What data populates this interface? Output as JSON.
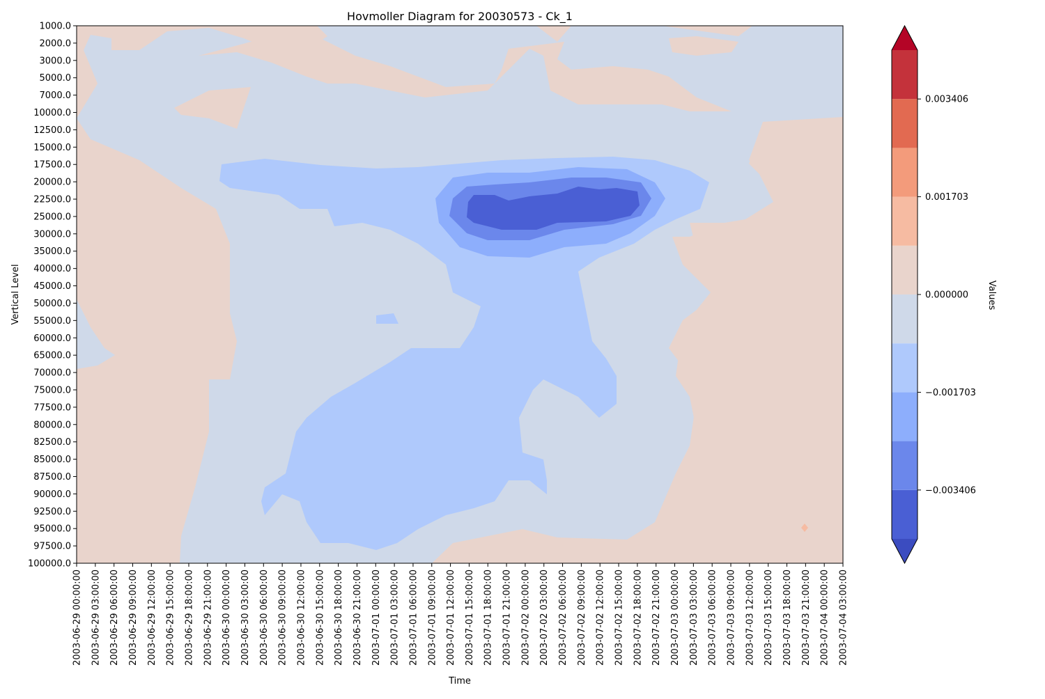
{
  "chart_data": {
    "type": "heatmap",
    "title": "Hovmoller Diagram for 20030573 - Ck_1",
    "xlabel": "Time",
    "ylabel": "Vertical Level",
    "x_ticks": [
      "2003-06-29 00:00:00",
      "2003-06-29 03:00:00",
      "2003-06-29 06:00:00",
      "2003-06-29 09:00:00",
      "2003-06-29 12:00:00",
      "2003-06-29 15:00:00",
      "2003-06-29 18:00:00",
      "2003-06-29 21:00:00",
      "2003-06-30 00:00:00",
      "2003-06-30 03:00:00",
      "2003-06-30 06:00:00",
      "2003-06-30 09:00:00",
      "2003-06-30 12:00:00",
      "2003-06-30 15:00:00",
      "2003-06-30 18:00:00",
      "2003-06-30 21:00:00",
      "2003-07-01 00:00:00",
      "2003-07-01 03:00:00",
      "2003-07-01 06:00:00",
      "2003-07-01 09:00:00",
      "2003-07-01 12:00:00",
      "2003-07-01 15:00:00",
      "2003-07-01 18:00:00",
      "2003-07-01 21:00:00",
      "2003-07-02 00:00:00",
      "2003-07-02 03:00:00",
      "2003-07-02 06:00:00",
      "2003-07-02 09:00:00",
      "2003-07-02 12:00:00",
      "2003-07-02 15:00:00",
      "2003-07-02 18:00:00",
      "2003-07-02 21:00:00",
      "2003-07-03 00:00:00",
      "2003-07-03 03:00:00",
      "2003-07-03 06:00:00",
      "2003-07-03 09:00:00",
      "2003-07-03 12:00:00",
      "2003-07-03 15:00:00",
      "2003-07-03 18:00:00",
      "2003-07-03 21:00:00",
      "2003-07-04 00:00:00",
      "2003-07-04 03:00:00"
    ],
    "y_ticks": [
      "1000.0",
      "2000.0",
      "3000.0",
      "5000.0",
      "7000.0",
      "10000.0",
      "12500.0",
      "15000.0",
      "17500.0",
      "20000.0",
      "22500.0",
      "25000.0",
      "30000.0",
      "35000.0",
      "40000.0",
      "45000.0",
      "50000.0",
      "55000.0",
      "60000.0",
      "65000.0",
      "70000.0",
      "75000.0",
      "77500.0",
      "80000.0",
      "82500.0",
      "85000.0",
      "87500.0",
      "90000.0",
      "92500.0",
      "95000.0",
      "97500.0",
      "100000.0"
    ],
    "y_inverted": true,
    "colorbar": {
      "label": "Values",
      "ticks": [
        "0.003406",
        "0.001703",
        "0.000000",
        "−0.001703",
        "−0.003406"
      ],
      "tick_values": [
        0.003406,
        0.001703,
        0.0,
        -0.001703,
        -0.003406
      ],
      "levels": [
        -0.004257,
        -0.003406,
        -0.002554,
        -0.001703,
        -0.000851,
        0.0,
        0.000851,
        0.001703,
        0.002554,
        0.003406,
        0.004257
      ],
      "colors": [
        "#4a5fd4",
        "#6b87eb",
        "#8daefc",
        "#afc9fc",
        "#cfd9e9",
        "#e9d4cc",
        "#f6bba2",
        "#f39b7b",
        "#e26a51",
        "#c4323b"
      ],
      "under_color": "#3b4cc0",
      "over_color": "#b40426",
      "extend": "both"
    },
    "grid": false
  }
}
